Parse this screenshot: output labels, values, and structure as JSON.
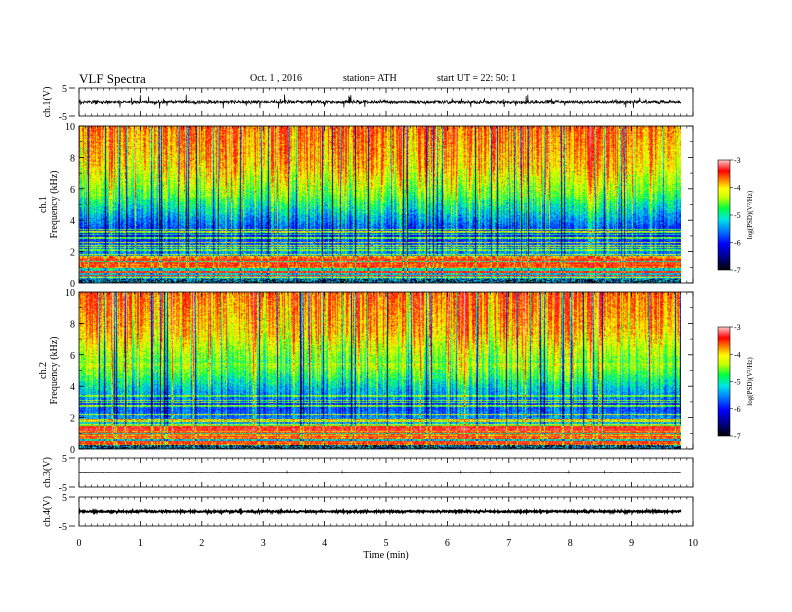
{
  "header": {
    "title": "VLF  Spectra",
    "date": "Oct. 1  , 2016",
    "station": "station= ATH",
    "start": "start  UT  =    22: 50: 1"
  },
  "chart_data": [
    {
      "type": "line",
      "id": "ch1-waveform",
      "ylabel": "ch.1(V)",
      "ylim": [
        -5,
        5
      ],
      "yticks": [
        5,
        -5
      ],
      "xlim": [
        0,
        10
      ],
      "baseline": 0,
      "amplitude_typical": 0.6,
      "amplitude_spike": 2.6,
      "data_end": 9.8
    },
    {
      "type": "heatmap",
      "id": "ch1-spectrogram",
      "ylabel": "ch.1",
      "ylabel2": "Frequency  (kHz)",
      "ylim": [
        0,
        10
      ],
      "yticks": [
        0,
        2,
        4,
        6,
        8,
        10
      ],
      "xlim": [
        0,
        10
      ],
      "data_end": 9.8,
      "colorbar": {
        "label": "log(PSD)(V²/Hz)",
        "range": [
          -7,
          -3
        ],
        "ticks": [
          -3,
          -4,
          -5,
          -6,
          -7
        ]
      }
    },
    {
      "type": "heatmap",
      "id": "ch2-spectrogram",
      "ylabel": "ch.2",
      "ylabel2": "Frequency  (kHz)",
      "ylim": [
        0,
        10
      ],
      "yticks": [
        0,
        2,
        4,
        6,
        8,
        10
      ],
      "xlim": [
        0,
        10
      ],
      "data_end": 9.8,
      "colorbar": {
        "label": "log(PSD)(V²/Hz)",
        "range": [
          -7,
          -3
        ],
        "ticks": [
          -3,
          -4,
          -5,
          -6,
          -7
        ]
      }
    },
    {
      "type": "line",
      "id": "ch3-waveform",
      "ylabel": "ch.3(V)",
      "ylim": [
        -5,
        5
      ],
      "yticks": [
        5,
        -5
      ],
      "xlim": [
        0,
        10
      ],
      "baseline": 0,
      "amplitude_typical": 0.05,
      "data_end": 9.8
    },
    {
      "type": "line",
      "id": "ch4-waveform",
      "ylabel": "ch.4(V)",
      "ylim": [
        -5,
        5
      ],
      "yticks": [
        5,
        -5
      ],
      "xlim": [
        0,
        10
      ],
      "baseline": 0,
      "amplitude_typical": 0.3,
      "data_end": 9.8
    }
  ],
  "xaxis": {
    "label": "Time  (min)",
    "ticks": [
      0,
      1,
      2,
      3,
      4,
      5,
      6,
      7,
      8,
      9,
      10
    ]
  }
}
